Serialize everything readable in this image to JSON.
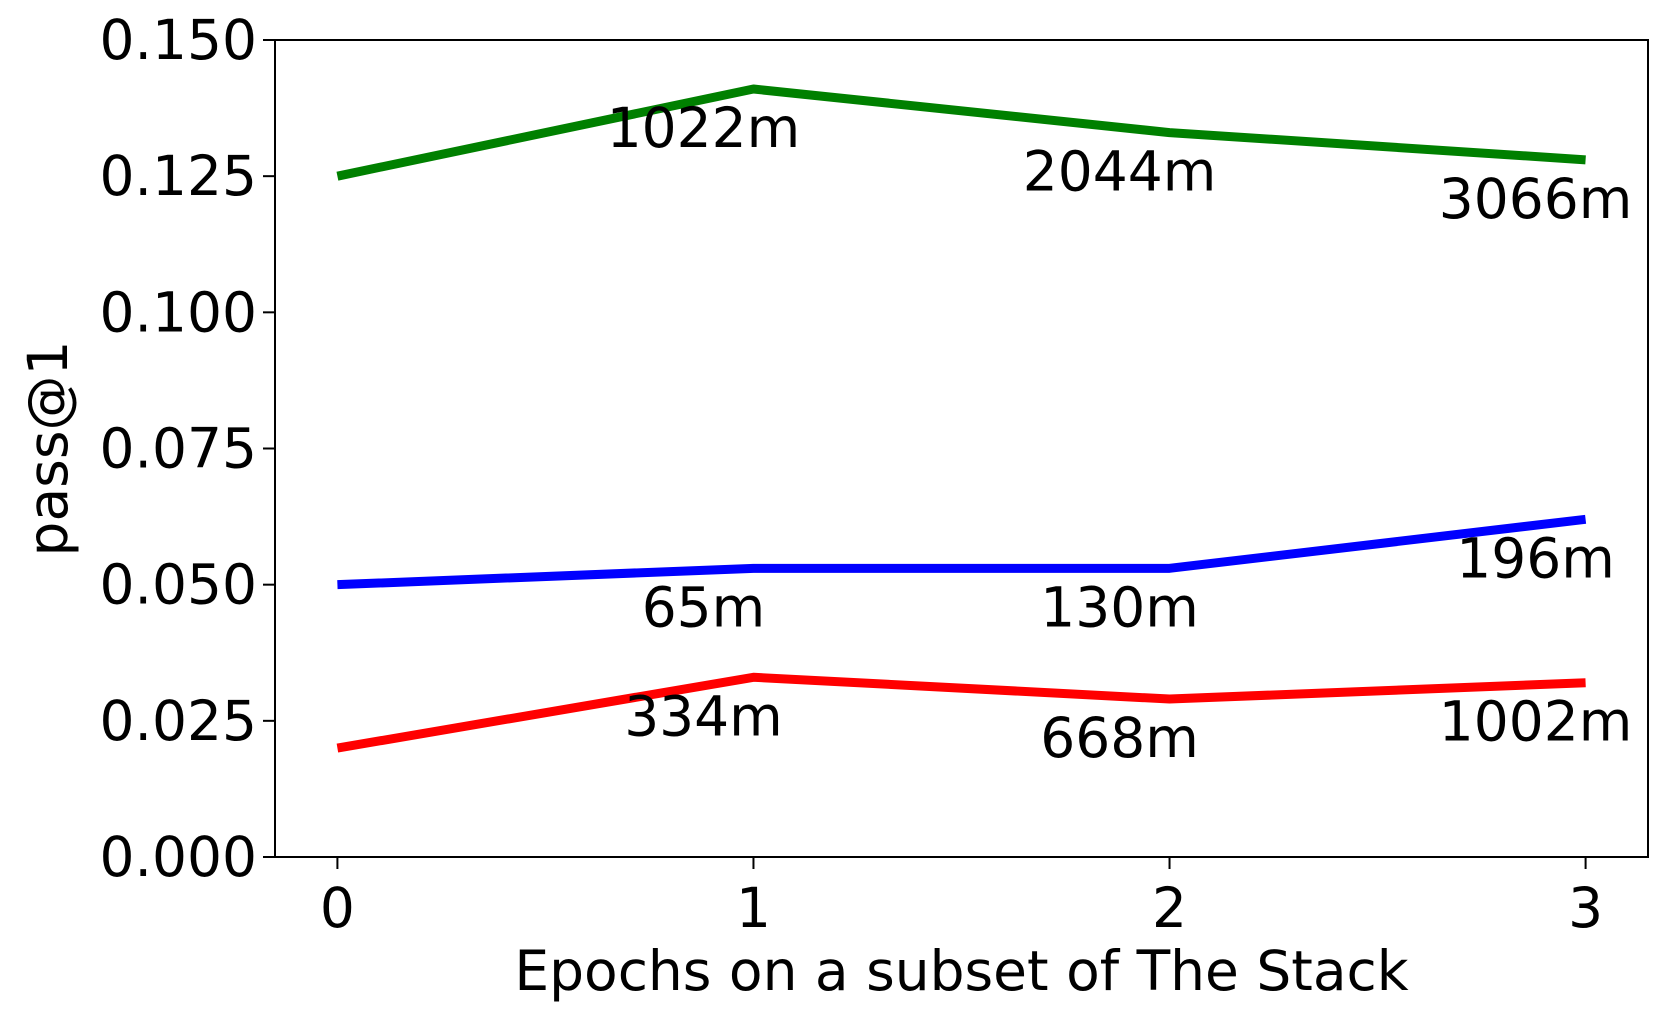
{
  "chart_data": {
    "type": "line",
    "title": "",
    "xlabel": "Epochs on a subset of The Stack",
    "ylabel": "pass@1",
    "x": [
      0,
      1,
      2,
      3
    ],
    "xticks": [
      "0",
      "1",
      "2",
      "3"
    ],
    "xlim": [
      -0.15,
      3.15
    ],
    "yticks": [
      "0.000",
      "0.025",
      "0.050",
      "0.075",
      "0.100",
      "0.125",
      "0.150"
    ],
    "ylim": [
      0.0,
      0.15
    ],
    "grid": false,
    "series": [
      {
        "color": "#008000",
        "values": [
          0.125,
          0.141,
          0.133,
          0.128
        ],
        "point_labels": [
          "",
          "1022m",
          "2044m",
          "3066m"
        ]
      },
      {
        "color": "#0000ff",
        "values": [
          0.05,
          0.053,
          0.053,
          0.062
        ],
        "point_labels": [
          "",
          "65m",
          "130m",
          "196m"
        ]
      },
      {
        "color": "#ff0000",
        "values": [
          0.02,
          0.033,
          0.029,
          0.032
        ],
        "point_labels": [
          "",
          "334m",
          "668m",
          "1002m"
        ]
      }
    ]
  }
}
